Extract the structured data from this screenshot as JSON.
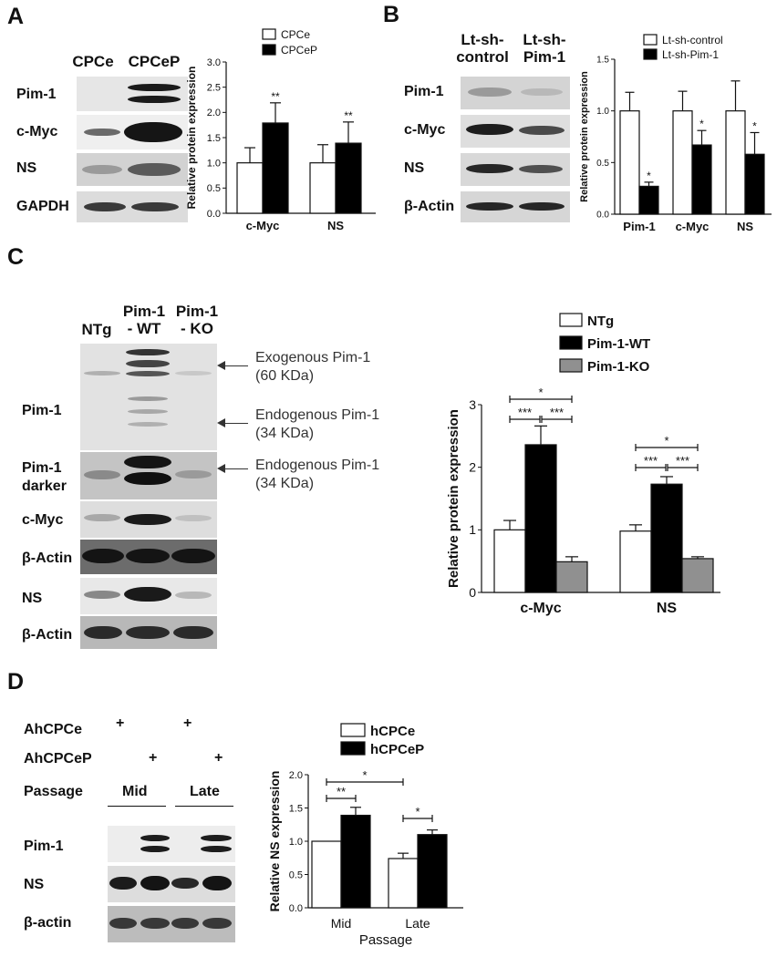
{
  "panels": {
    "A": {
      "letter": "A",
      "blot": {
        "lanes": [
          "CPCe",
          "CPCeP"
        ],
        "rows": [
          "Pim-1",
          "c-Myc",
          "NS",
          "GAPDH"
        ]
      }
    },
    "B": {
      "letter": "B",
      "blot": {
        "lanes": [
          "Lt-sh-\ncontrol",
          "Lt-sh-\nPim-1"
        ],
        "rows": [
          "Pim-1",
          "c-Myc",
          "NS",
          "β-Actin"
        ]
      }
    },
    "C": {
      "letter": "C",
      "blot": {
        "lanes": [
          "NTg",
          "Pim-1\n- WT",
          "Pim-1\n- KO"
        ],
        "rows": [
          "Pim-1",
          "Pim-1\ndarker",
          "c-Myc",
          "β-Actin",
          "NS",
          "β-Actin"
        ],
        "annotations": [
          "Exogenous Pim-1\n(60 KDa)",
          "Endogenous Pim-1\n(34 KDa)",
          "Endogenous Pim-1\n(34 KDa)"
        ]
      }
    },
    "D": {
      "letter": "D",
      "blot": {
        "conditions": [
          "AhCPCe",
          "AhCPCeP",
          "Passage"
        ],
        "plus": "+",
        "passages": [
          "Mid",
          "Late"
        ],
        "rows": [
          "Pim-1",
          "NS",
          "β-actin"
        ]
      }
    }
  },
  "chart_data": [
    {
      "panel": "A",
      "type": "bar",
      "categories": [
        "c-Myc",
        "NS"
      ],
      "series": [
        {
          "name": "CPCe",
          "values": [
            1.0,
            1.0
          ],
          "errors": [
            0.3,
            0.36
          ],
          "fill": "#ffffff"
        },
        {
          "name": "CPCeP",
          "values": [
            1.79,
            1.39
          ],
          "errors": [
            0.4,
            0.42
          ],
          "fill": "#000000"
        }
      ],
      "significance": [
        "**",
        "**"
      ],
      "ylabel": "Relative protein expression",
      "xlabel": "",
      "ylim": [
        0,
        3.0
      ],
      "yticks": [
        "0.0",
        "0.5",
        "1.0",
        "1.5",
        "2.0",
        "2.5",
        "3.0"
      ],
      "legend": "top-left"
    },
    {
      "panel": "B",
      "type": "bar",
      "categories": [
        "Pim-1",
        "c-Myc",
        "NS"
      ],
      "series": [
        {
          "name": "Lt-sh-control",
          "values": [
            1.0,
            1.0,
            1.0
          ],
          "errors": [
            0.18,
            0.19,
            0.29
          ],
          "fill": "#ffffff"
        },
        {
          "name": "Lt-sh-Pim-1",
          "values": [
            0.27,
            0.67,
            0.58
          ],
          "errors": [
            0.04,
            0.14,
            0.21
          ],
          "fill": "#000000"
        }
      ],
      "significance": [
        "*",
        "*",
        "*"
      ],
      "ylabel": "Relative protein expression",
      "xlabel": "",
      "ylim": [
        0,
        1.5
      ],
      "yticks": [
        "0.0",
        "0.5",
        "1.0",
        "1.5"
      ],
      "legend": "top-left"
    },
    {
      "panel": "C",
      "type": "bar",
      "categories": [
        "c-Myc",
        "NS"
      ],
      "series": [
        {
          "name": "NTg",
          "values": [
            1.0,
            0.98
          ],
          "errors": [
            0.15,
            0.1
          ],
          "fill": "#ffffff"
        },
        {
          "name": "Pim-1-WT",
          "values": [
            2.36,
            1.73
          ],
          "errors": [
            0.3,
            0.12
          ],
          "fill": "#000000"
        },
        {
          "name": "Pim-1-KO",
          "values": [
            0.49,
            0.54
          ],
          "errors": [
            0.08,
            0.03
          ],
          "fill": "#909090"
        }
      ],
      "significance_brackets": [
        "*",
        "***",
        "***"
      ],
      "ylabel": "Relative protein expression",
      "xlabel": "",
      "ylim": [
        0,
        3
      ],
      "yticks": [
        "0",
        "1",
        "2",
        "3"
      ],
      "legend": "top-right"
    },
    {
      "panel": "D",
      "type": "bar",
      "categories": [
        "Mid",
        "Late"
      ],
      "series": [
        {
          "name": "hCPCe",
          "values": [
            1.0,
            0.74
          ],
          "errors": [
            0.0,
            0.08
          ],
          "fill": "#ffffff"
        },
        {
          "name": "hCPCeP",
          "values": [
            1.39,
            1.1
          ],
          "errors": [
            0.12,
            0.07
          ],
          "fill": "#000000"
        }
      ],
      "significance_brackets": [
        "**",
        "*",
        "*"
      ],
      "ylabel": "Relative NS expression",
      "xlabel": "Passage",
      "ylim": [
        0,
        2.0
      ],
      "yticks": [
        "0.0",
        "0.5",
        "1.0",
        "1.5",
        "2.0"
      ],
      "legend": "top-left"
    }
  ]
}
